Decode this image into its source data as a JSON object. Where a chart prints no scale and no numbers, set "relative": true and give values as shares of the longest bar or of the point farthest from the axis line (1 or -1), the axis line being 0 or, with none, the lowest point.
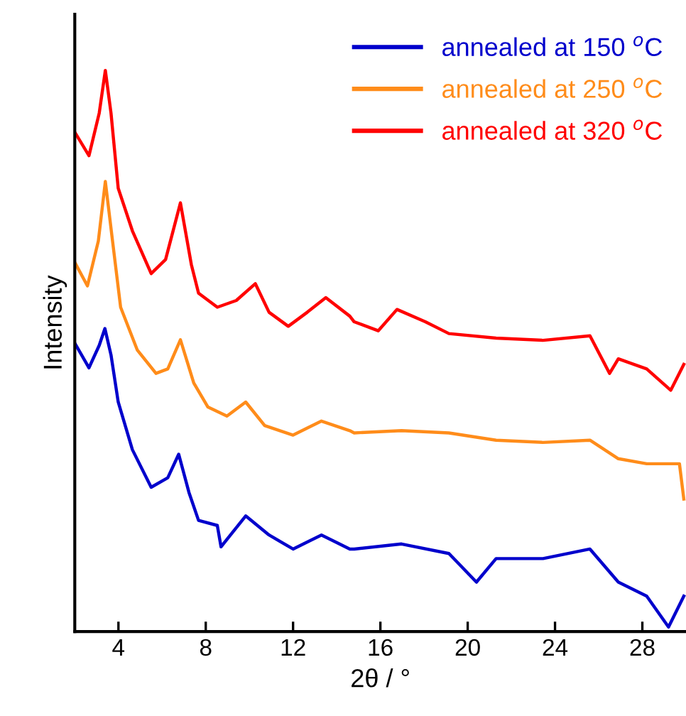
{
  "chart_data": {
    "type": "line",
    "relative": true,
    "xlabel": "2θ / °",
    "ylabel": "Intensity",
    "xlim": [
      2,
      30
    ],
    "xticks": [
      4,
      8,
      12,
      16,
      20,
      24,
      28
    ],
    "tick_labels": "x",
    "grid": false,
    "legend": "top right",
    "marker": "none",
    "line_style": "solid",
    "series": [
      {
        "name": "annealed at 150 $^{o}$C",
        "color": "#0000cc",
        "x": [
          2.0,
          2.65,
          3.12,
          3.38,
          3.66,
          3.99,
          4.64,
          5.5,
          6.26,
          6.76,
          7.23,
          7.67,
          8.53,
          8.7,
          9.83,
          10.9,
          12.0,
          13.3,
          14.6,
          14.8,
          16.97,
          19.14,
          20.4,
          21.3,
          23.45,
          25.6,
          26.9,
          28.2,
          29.2,
          29.9
        ],
        "values": [
          0.514,
          0.47,
          0.51,
          0.54,
          0.493,
          0.409,
          0.324,
          0.257,
          0.274,
          0.316,
          0.248,
          0.198,
          0.189,
          0.151,
          0.206,
          0.172,
          0.147,
          0.172,
          0.147,
          0.147,
          0.156,
          0.139,
          0.088,
          0.13,
          0.13,
          0.147,
          0.088,
          0.063,
          0.008,
          0.063
        ]
      },
      {
        "name": "annealed at 250 $^{o}$C",
        "color": "#ff8c1a",
        "x": [
          2.0,
          2.58,
          3.08,
          3.4,
          3.73,
          4.1,
          4.86,
          5.72,
          6.26,
          6.84,
          7.45,
          8.1,
          8.97,
          9.83,
          10.7,
          12.0,
          13.3,
          14.6,
          14.8,
          16.97,
          19.14,
          21.3,
          23.45,
          25.6,
          26.9,
          28.2,
          29.7,
          29.9
        ],
        "values": [
          0.658,
          0.616,
          0.696,
          0.802,
          0.696,
          0.578,
          0.502,
          0.46,
          0.468,
          0.52,
          0.443,
          0.4,
          0.384,
          0.409,
          0.367,
          0.35,
          0.375,
          0.358,
          0.354,
          0.358,
          0.354,
          0.341,
          0.337,
          0.341,
          0.308,
          0.299,
          0.299,
          0.236
        ]
      },
      {
        "name": "annealed at 320 $^{o}$C",
        "color": "#ff0000",
        "x": [
          2.0,
          2.65,
          3.12,
          3.4,
          3.66,
          3.99,
          4.64,
          5.5,
          6.16,
          6.84,
          7.34,
          7.67,
          8.53,
          9.4,
          10.27,
          10.9,
          11.78,
          12.65,
          13.5,
          14.6,
          14.8,
          15.9,
          16.76,
          18.06,
          19.14,
          21.3,
          23.45,
          25.6,
          26.5,
          26.9,
          28.2,
          29.3,
          29.9
        ],
        "values": [
          0.89,
          0.848,
          0.924,
          1.0,
          0.924,
          0.79,
          0.714,
          0.638,
          0.663,
          0.764,
          0.654,
          0.603,
          0.578,
          0.59,
          0.62,
          0.569,
          0.544,
          0.569,
          0.595,
          0.562,
          0.552,
          0.536,
          0.574,
          0.552,
          0.531,
          0.523,
          0.519,
          0.527,
          0.46,
          0.486,
          0.468,
          0.43,
          0.476
        ]
      }
    ]
  }
}
